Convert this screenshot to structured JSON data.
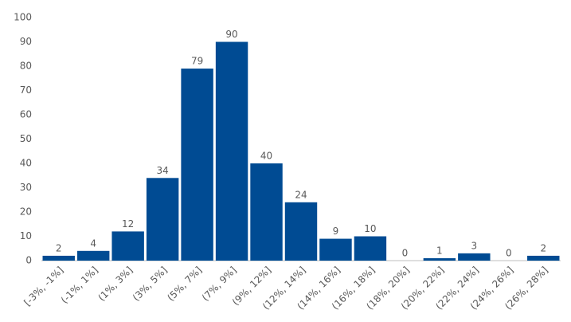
{
  "chart_data": {
    "type": "bar",
    "categories": [
      "[-3%, -1%]",
      "(-1%, 1%]",
      "(1%, 3%]",
      "(3%, 5%]",
      "(5%, 7%]",
      "(7%, 9%]",
      "(9%, 12%]",
      "(12%, 14%]",
      "(14%, 16%]",
      "(16%, 18%]",
      "(18%, 20%]",
      "(20%, 22%]",
      "(22%, 24%]",
      "(24%, 26%]",
      "(26%, 28%]"
    ],
    "values": [
      2,
      4,
      12,
      34,
      79,
      90,
      40,
      24,
      9,
      10,
      0,
      1,
      3,
      0,
      2
    ],
    "color": "#004b93",
    "ylim": [
      0,
      100
    ],
    "yticks": [
      0,
      10,
      20,
      30,
      40,
      50,
      60,
      70,
      80,
      90,
      100
    ],
    "grid": false,
    "data_labels": true
  }
}
